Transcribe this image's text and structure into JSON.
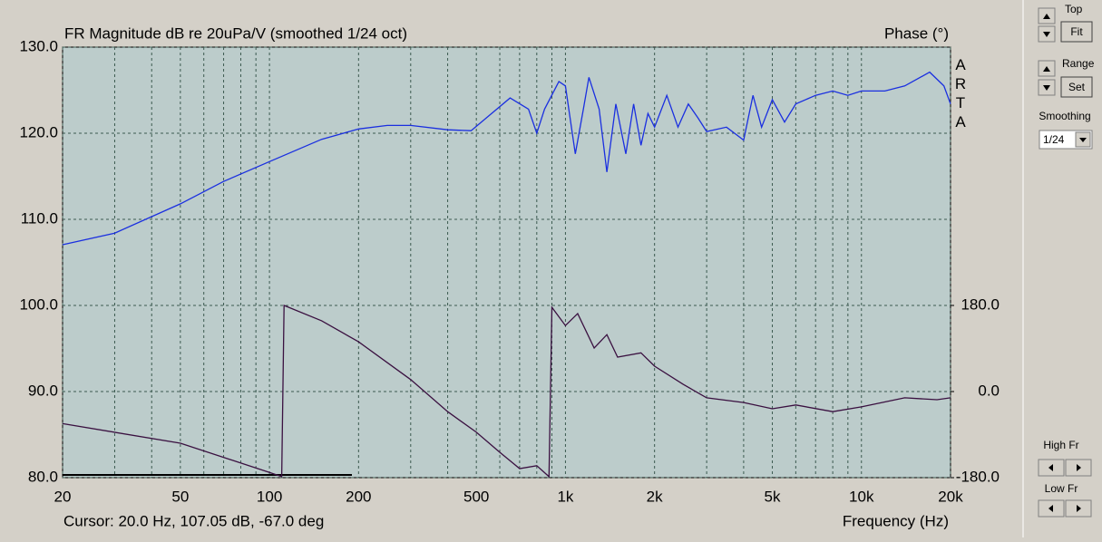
{
  "chart_data": {
    "type": "line",
    "title": "FR Magnitude dB re 20uPa/V (smoothed 1/24 oct)",
    "y2_label": "Phase (°)",
    "x_label": "Frequency (Hz)",
    "watermark": "ARTA",
    "cursor": "Cursor: 20.0 Hz, 107.05 dB, -67.0 deg",
    "log_x": true,
    "grid": true,
    "xlim": [
      20,
      20000
    ],
    "xticks": [
      20,
      50,
      100,
      200,
      500,
      {
        "value": 1000,
        "label": "1k"
      },
      {
        "value": 2000,
        "label": "2k"
      },
      {
        "value": 5000,
        "label": "5k"
      },
      {
        "value": 10000,
        "label": "10k"
      },
      {
        "value": 20000,
        "label": "20k"
      }
    ],
    "xminor": [
      30,
      40,
      60,
      70,
      80,
      90,
      300,
      400,
      600,
      700,
      800,
      900,
      3000,
      4000,
      6000,
      7000,
      8000,
      9000
    ],
    "ylim": [
      80,
      130
    ],
    "yticks": [
      {
        "value": 80,
        "label": "80.0"
      },
      {
        "value": 90,
        "label": "90.0"
      },
      {
        "value": 100,
        "label": "100.0"
      },
      {
        "value": 110,
        "label": "110.0"
      },
      {
        "value": 120,
        "label": "120.0"
      },
      {
        "value": 130,
        "label": "130.0"
      }
    ],
    "y2lim": [
      -180,
      720
    ],
    "y2ticks": [
      {
        "value": -180,
        "label": "-180.0"
      },
      {
        "value": 0,
        "label": "0.0"
      },
      {
        "value": 180,
        "label": "180.0"
      }
    ],
    "series": [
      {
        "color": "#1a2fe0",
        "x": [
          20,
          30,
          50,
          70,
          100,
          150,
          200,
          250,
          300,
          400,
          480,
          550,
          650,
          750,
          800,
          850,
          950,
          1000,
          1080,
          1150,
          1200,
          1300,
          1380,
          1480,
          1600,
          1700,
          1800,
          1900,
          2000,
          2200,
          2400,
          2600,
          2800,
          3000,
          3500,
          4000,
          4300,
          4600,
          5000,
          5500,
          6000,
          7000,
          8000,
          9000,
          10000,
          12000,
          14000,
          17000,
          19000,
          20000
        ],
        "values": [
          107.05,
          108.4,
          111.8,
          114.4,
          116.7,
          119.3,
          120.5,
          120.9,
          120.9,
          120.4,
          120.3,
          122.0,
          124.1,
          122.8,
          120.0,
          122.8,
          126.0,
          125.5,
          117.6,
          122.8,
          126.5,
          122.8,
          115.5,
          123.4,
          117.6,
          123.4,
          118.6,
          122.3,
          120.7,
          124.4,
          120.7,
          123.4,
          121.8,
          120.2,
          120.7,
          119.2,
          124.4,
          120.7,
          123.9,
          121.3,
          123.4,
          124.4,
          124.9,
          124.4,
          124.9,
          124.9,
          125.5,
          127.1,
          125.5,
          123.4
        ]
      },
      {
        "color": "#3a1040",
        "axis": "y2",
        "x": [
          20,
          50,
          100,
          110,
          112,
          150,
          200,
          300,
          400,
          500,
          600,
          700,
          800,
          880,
          900,
          1000,
          1100,
          1250,
          1380,
          1500,
          1800,
          2000,
          2500,
          3000,
          4000,
          5000,
          6000,
          8000,
          10000,
          14000,
          18000,
          20000
        ],
        "values": [
          -67,
          -108,
          -169,
          -178,
          180,
          148,
          104,
          25,
          -42,
          -85,
          -127,
          -161,
          -155,
          -178,
          176,
          138,
          163,
          91,
          119,
          72,
          81,
          53,
          15,
          -13,
          -23,
          -36,
          -28,
          -42,
          -32,
          -13,
          -17,
          -13
        ]
      }
    ]
  },
  "panel": {
    "top_label": "Top",
    "fit": "Fit",
    "range_label": "Range",
    "set": "Set",
    "smoothing_label": "Smoothing",
    "smoothing_value": "1/24",
    "high_fr": "High Fr",
    "low_fr": "Low Fr"
  }
}
